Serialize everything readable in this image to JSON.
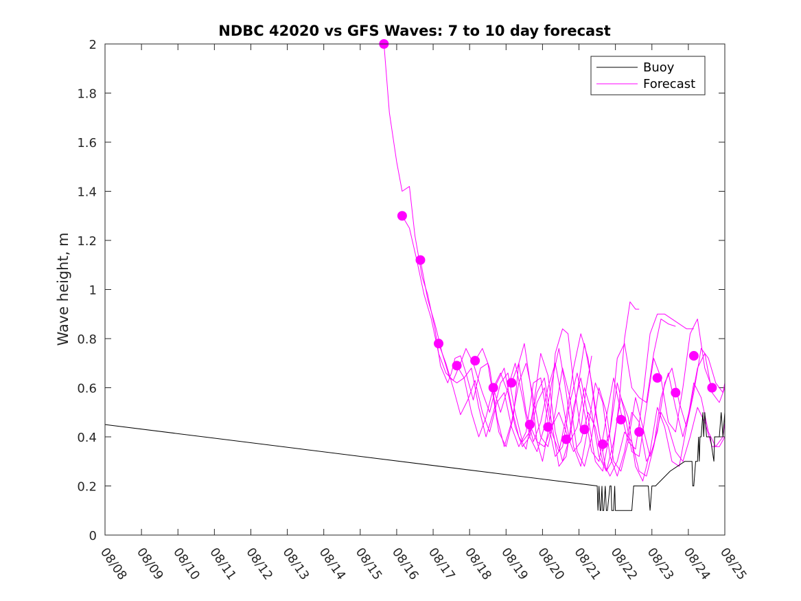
{
  "chart_data": {
    "type": "line",
    "title": "NDBC 42020 vs GFS Waves: 7 to 10 day forecast",
    "xlabel": "",
    "ylabel": "Wave height, m",
    "x_ticks": [
      "08/08",
      "08/09",
      "08/10",
      "08/11",
      "08/12",
      "08/13",
      "08/14",
      "08/15",
      "08/16",
      "08/17",
      "08/18",
      "08/19",
      "08/20",
      "08/21",
      "08/22",
      "08/23",
      "08/24",
      "08/25"
    ],
    "xlim": [
      0,
      17
    ],
    "ylim": [
      0,
      2
    ],
    "y_ticks": [
      0,
      0.2,
      0.4,
      0.6,
      0.8,
      1,
      1.2,
      1.4,
      1.6,
      1.8,
      2
    ],
    "y_tick_labels": [
      "0",
      "0.2",
      "0.4",
      "0.6",
      "0.8",
      "1",
      "1.2",
      "1.4",
      "1.6",
      "1.8",
      "2"
    ],
    "legend": {
      "position": "top-right",
      "entries": [
        "Buoy",
        "Forecast"
      ]
    },
    "colors": {
      "buoy": "#000000",
      "forecast": "#ff00ff",
      "axis": "#262626"
    },
    "buoy": {
      "name": "Buoy",
      "x": [
        0,
        13.5,
        13.52,
        13.55,
        13.58,
        13.6,
        13.63,
        13.65,
        13.68,
        13.72,
        13.75,
        13.78,
        13.85,
        13.88,
        13.9,
        13.95,
        13.98,
        14.0,
        14.03,
        14.06,
        14.1,
        14.15,
        14.2,
        14.45,
        14.5,
        14.6,
        14.9,
        14.95,
        15.0,
        15.02,
        15.05,
        15.1,
        15.5,
        15.9,
        16.0,
        16.05,
        16.1,
        16.12,
        16.15,
        16.2,
        16.25,
        16.28,
        16.3,
        16.32,
        16.35,
        16.4,
        16.42,
        16.45,
        16.5,
        16.52,
        16.55,
        16.6,
        16.7,
        16.72,
        16.75,
        16.8,
        16.85,
        16.9,
        16.95,
        17.0
      ],
      "y": [
        0.45,
        0.2,
        0.1,
        0.2,
        0.1,
        0.1,
        0.2,
        0.1,
        0.1,
        0.2,
        0.1,
        0.1,
        0.2,
        0.2,
        0.1,
        0.1,
        0.2,
        0.1,
        0.1,
        0.1,
        0.1,
        0.1,
        0.1,
        0.1,
        0.2,
        0.2,
        0.2,
        0.1,
        0.2,
        0.2,
        0.2,
        0.2,
        0.26,
        0.3,
        0.3,
        0.3,
        0.3,
        0.2,
        0.2,
        0.3,
        0.3,
        0.4,
        0.3,
        0.4,
        0.4,
        0.5,
        0.4,
        0.5,
        0.4,
        0.4,
        0.4,
        0.4,
        0.3,
        0.4,
        0.4,
        0.4,
        0.4,
        0.5,
        0.4,
        0.5
      ]
    },
    "forecast_runs": [
      {
        "name": "Forecast",
        "x": [
          7.65,
          7.8,
          8.0,
          8.15,
          8.35,
          8.5,
          8.7,
          8.85,
          9.05,
          9.2,
          9.4,
          9.5,
          9.6,
          9.75,
          9.9,
          10.1,
          10.3,
          10.5,
          10.65,
          10.8,
          11.0,
          11.2,
          11.35,
          11.5,
          11.7,
          11.85,
          12.0,
          12.2,
          12.35,
          12.55,
          12.7,
          12.85,
          13.05,
          13.2,
          13.35
        ],
        "y": [
          2.0,
          1.72,
          1.52,
          1.4,
          1.42,
          1.22,
          1.05,
          0.98,
          0.84,
          0.69,
          0.62,
          0.66,
          0.72,
          0.73,
          0.66,
          0.55,
          0.68,
          0.7,
          0.56,
          0.42,
          0.36,
          0.48,
          0.7,
          0.78,
          0.58,
          0.38,
          0.3,
          0.46,
          0.74,
          0.84,
          0.82,
          0.62,
          0.43,
          0.6,
          0.73
        ]
      },
      {
        "name": "Forecast",
        "x": [
          8.15,
          8.35,
          8.55,
          8.75,
          8.95,
          9.15,
          9.35,
          9.55,
          9.75,
          9.9,
          10.1,
          10.35,
          10.55,
          10.75,
          10.95,
          11.15,
          11.35,
          11.55,
          11.75,
          11.95,
          12.15,
          12.35,
          12.55,
          12.75,
          12.95,
          13.15,
          13.35,
          13.55,
          13.75,
          13.9,
          14.1,
          14.25,
          14.4,
          14.55,
          14.65
        ],
        "y": [
          1.3,
          1.25,
          1.12,
          0.98,
          0.88,
          0.74,
          0.66,
          0.63,
          0.7,
          0.76,
          0.7,
          0.58,
          0.5,
          0.62,
          0.68,
          0.52,
          0.4,
          0.35,
          0.52,
          0.74,
          0.65,
          0.42,
          0.3,
          0.4,
          0.58,
          0.78,
          0.62,
          0.42,
          0.26,
          0.3,
          0.54,
          0.8,
          0.95,
          0.92,
          0.92
        ]
      },
      {
        "name": "Forecast",
        "x": [
          8.65,
          8.85,
          9.05,
          9.25,
          9.45,
          9.65,
          9.85,
          10.05,
          10.25,
          10.45,
          10.65,
          10.85,
          11.05,
          11.25,
          11.45,
          11.65,
          11.85,
          12.05,
          12.25,
          12.45,
          12.65,
          12.85,
          13.05,
          13.25,
          13.45,
          13.65,
          13.85,
          14.05,
          14.25,
          14.45,
          14.65,
          14.85,
          15.05,
          15.25,
          15.45,
          15.65
        ],
        "y": [
          1.12,
          0.96,
          0.86,
          0.74,
          0.64,
          0.62,
          0.64,
          0.5,
          0.4,
          0.48,
          0.6,
          0.66,
          0.58,
          0.44,
          0.36,
          0.4,
          0.54,
          0.6,
          0.42,
          0.34,
          0.48,
          0.68,
          0.82,
          0.72,
          0.5,
          0.34,
          0.42,
          0.72,
          0.78,
          0.6,
          0.56,
          0.54,
          0.74,
          0.88,
          0.86,
          0.85
        ]
      },
      {
        "name": "Forecast",
        "x": [
          9.15,
          9.35,
          9.55,
          9.75,
          9.95,
          10.15,
          10.35,
          10.55,
          10.75,
          10.95,
          11.15,
          11.35,
          11.55,
          11.75,
          11.95,
          12.15,
          12.35,
          12.55,
          12.75,
          12.95,
          13.15,
          13.35,
          13.55,
          13.75,
          13.95,
          14.15,
          14.35,
          14.55,
          14.75,
          14.95,
          15.15,
          15.35,
          15.55,
          15.75,
          15.95,
          16.15
        ],
        "y": [
          0.78,
          0.7,
          0.6,
          0.49,
          0.55,
          0.63,
          0.5,
          0.42,
          0.54,
          0.58,
          0.44,
          0.36,
          0.42,
          0.62,
          0.64,
          0.46,
          0.32,
          0.36,
          0.54,
          0.66,
          0.5,
          0.34,
          0.3,
          0.48,
          0.64,
          0.5,
          0.38,
          0.35,
          0.56,
          0.82,
          0.9,
          0.9,
          0.88,
          0.86,
          0.84,
          0.84
        ]
      },
      {
        "name": "Forecast",
        "x": [
          9.65,
          9.85,
          10.05,
          10.25,
          10.45,
          10.65,
          10.85,
          11.05,
          11.25,
          11.45,
          11.65,
          11.85,
          12.05,
          12.25,
          12.45,
          12.65,
          12.85,
          13.05,
          13.25,
          13.45,
          13.65,
          13.85,
          14.05,
          14.25,
          14.45,
          14.65,
          14.85,
          15.05,
          15.25,
          15.45,
          15.65,
          15.85,
          16.05,
          16.25,
          16.45,
          16.65
        ],
        "y": [
          0.69,
          0.64,
          0.68,
          0.52,
          0.4,
          0.5,
          0.62,
          0.66,
          0.5,
          0.38,
          0.42,
          0.58,
          0.64,
          0.46,
          0.28,
          0.32,
          0.52,
          0.64,
          0.48,
          0.3,
          0.26,
          0.42,
          0.62,
          0.5,
          0.34,
          0.32,
          0.52,
          0.72,
          0.64,
          0.46,
          0.42,
          0.6,
          0.82,
          0.88,
          0.68,
          0.6
        ]
      },
      {
        "name": "Forecast",
        "x": [
          10.15,
          10.35,
          10.55,
          10.75,
          10.95,
          11.15,
          11.35,
          11.55,
          11.75,
          11.95,
          12.15,
          12.35,
          12.55,
          12.75,
          12.95,
          13.15,
          13.35,
          13.55,
          13.75,
          13.95,
          14.15,
          14.35,
          14.55,
          14.75,
          14.95,
          15.15,
          15.35,
          15.55,
          15.75,
          15.95,
          16.15,
          16.35,
          16.55,
          16.75,
          16.95,
          17.0
        ],
        "y": [
          0.71,
          0.76,
          0.68,
          0.48,
          0.36,
          0.46,
          0.62,
          0.7,
          0.56,
          0.4,
          0.36,
          0.5,
          0.68,
          0.56,
          0.34,
          0.28,
          0.4,
          0.6,
          0.5,
          0.3,
          0.26,
          0.38,
          0.56,
          0.44,
          0.32,
          0.42,
          0.62,
          0.68,
          0.54,
          0.44,
          0.58,
          0.76,
          0.72,
          0.62,
          0.58,
          0.62
        ]
      },
      {
        "name": "Forecast",
        "x": [
          10.65,
          10.85,
          11.05,
          11.25,
          11.45,
          11.65,
          11.85,
          12.05,
          12.25,
          12.45,
          12.65,
          12.85,
          13.05,
          13.25,
          13.45,
          13.65,
          13.85,
          14.05,
          14.25,
          14.45,
          14.65,
          14.85,
          15.05,
          15.25,
          15.45,
          15.65,
          15.85,
          16.05,
          16.25,
          16.45,
          16.65,
          16.85,
          17.0
        ],
        "y": [
          0.6,
          0.5,
          0.6,
          0.7,
          0.56,
          0.4,
          0.34,
          0.44,
          0.62,
          0.76,
          0.58,
          0.36,
          0.28,
          0.44,
          0.62,
          0.54,
          0.32,
          0.24,
          0.34,
          0.5,
          0.46,
          0.3,
          0.36,
          0.56,
          0.66,
          0.52,
          0.4,
          0.52,
          0.68,
          0.74,
          0.58,
          0.54,
          0.6
        ]
      },
      {
        "name": "Forecast",
        "x": [
          11.15,
          11.35,
          11.55,
          11.75,
          11.95,
          12.15,
          12.35,
          12.55,
          12.75,
          12.95,
          13.15,
          13.35,
          13.55,
          13.75,
          13.95,
          14.15,
          14.35,
          14.55,
          14.75,
          14.95,
          15.15,
          15.35,
          15.55,
          15.75,
          15.95,
          16.15,
          16.35,
          16.55,
          16.75,
          16.95,
          17.0
        ],
        "y": [
          0.62,
          0.7,
          0.5,
          0.38,
          0.46,
          0.6,
          0.7,
          0.54,
          0.38,
          0.44,
          0.6,
          0.5,
          0.32,
          0.26,
          0.38,
          0.56,
          0.48,
          0.28,
          0.22,
          0.34,
          0.52,
          0.44,
          0.3,
          0.28,
          0.44,
          0.62,
          0.56,
          0.42,
          0.36,
          0.4,
          0.46
        ]
      },
      {
        "name": "Forecast",
        "x": [
          11.65,
          11.85,
          12.05,
          12.25,
          12.45,
          12.65,
          12.85,
          13.05,
          13.25,
          13.45,
          13.65,
          13.85,
          14.05,
          14.25,
          14.45,
          14.65,
          14.85,
          15.05,
          15.25,
          15.45,
          15.65,
          15.85,
          16.05,
          16.25,
          16.45,
          16.65,
          16.85,
          17.0
        ],
        "y": [
          0.45,
          0.38,
          0.36,
          0.44,
          0.5,
          0.42,
          0.34,
          0.38,
          0.5,
          0.44,
          0.3,
          0.24,
          0.3,
          0.42,
          0.38,
          0.26,
          0.24,
          0.36,
          0.5,
          0.44,
          0.34,
          0.3,
          0.4,
          0.52,
          0.46,
          0.36,
          0.36,
          0.4
        ]
      }
    ],
    "forecast_markers": {
      "x": [
        7.65,
        8.15,
        8.65,
        9.15,
        9.65,
        10.15,
        10.65,
        11.15,
        11.65,
        12.15,
        12.65,
        13.15,
        13.65,
        14.15,
        14.65,
        15.15,
        15.65,
        16.15,
        16.65
      ],
      "y": [
        2.0,
        1.3,
        1.12,
        0.78,
        0.69,
        0.71,
        0.6,
        0.62,
        0.45,
        0.44,
        0.39,
        0.43,
        0.37,
        0.47,
        0.42,
        0.64,
        0.58,
        0.73,
        0.6
      ]
    }
  }
}
